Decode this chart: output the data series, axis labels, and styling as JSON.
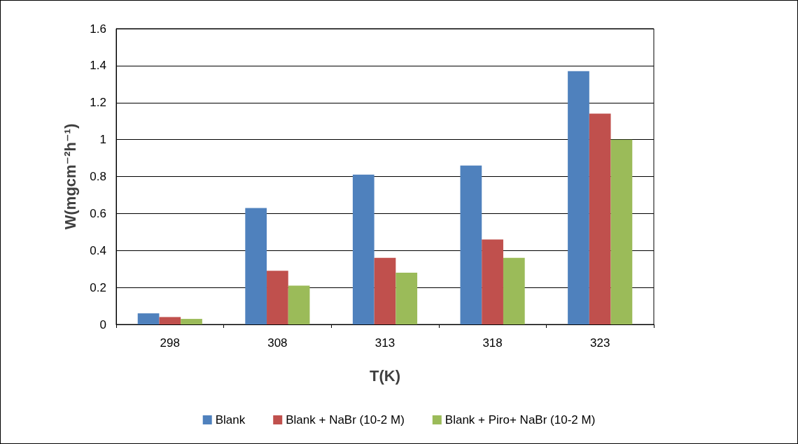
{
  "chart_data": {
    "type": "bar",
    "xlabel": "T(K)",
    "ylabel": "W(mgcm⁻²h⁻¹)",
    "categories": [
      "298",
      "308",
      "313",
      "318",
      "323"
    ],
    "series": [
      {
        "name": "Blank",
        "color": "#4f81bd",
        "values": [
          0.06,
          0.63,
          0.81,
          0.86,
          1.37
        ]
      },
      {
        "name": "Blank + NaBr (10-2 M)",
        "color": "#c0504d",
        "values": [
          0.04,
          0.29,
          0.36,
          0.46,
          1.14
        ]
      },
      {
        "name": "Blank + Piro+ NaBr (10-2 M)",
        "color": "#9bbb59",
        "values": [
          0.03,
          0.21,
          0.28,
          0.36,
          1.0
        ]
      }
    ],
    "ylim": [
      0,
      1.6
    ],
    "yticks": [
      0,
      0.2,
      0.4,
      0.6,
      0.8,
      1,
      1.2,
      1.4,
      1.6
    ],
    "grid": "y",
    "legend": "bottom"
  }
}
